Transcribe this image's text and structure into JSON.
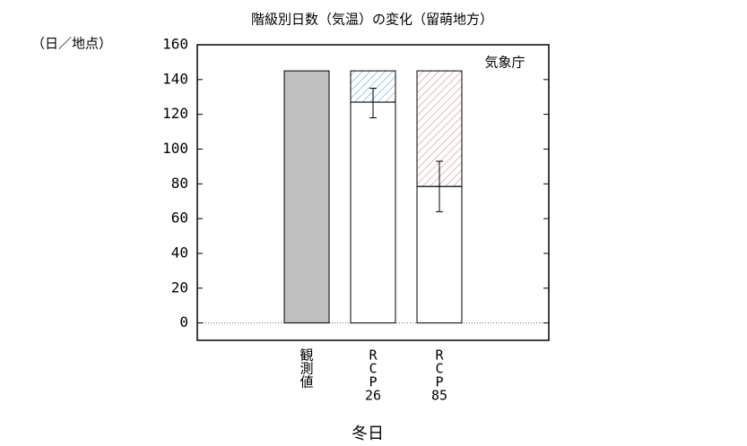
{
  "chart_data": {
    "type": "bar",
    "title": "階級別日数（気温）の変化（留萌地方）",
    "y_label": "（日／地点）",
    "annotation": "気象庁",
    "x_label": "冬日",
    "categories": [
      [
        "観",
        "測",
        "値"
      ],
      [
        "R",
        "C",
        "P",
        "26"
      ],
      [
        "R",
        "C",
        "P",
        "85"
      ]
    ],
    "values": [
      145,
      127,
      78.5
    ],
    "error_low": [
      null,
      118,
      64
    ],
    "error_high": [
      null,
      135,
      93
    ],
    "colors": [
      "#bfbfbf",
      "#ffffff",
      "#ffffff"
    ],
    "hatch_colors": [
      null,
      "#5b9bd5",
      "#e06666"
    ],
    "ylim": [
      -10,
      160
    ],
    "yticks": [
      0,
      20,
      40,
      60,
      80,
      100,
      120,
      140,
      160
    ]
  }
}
